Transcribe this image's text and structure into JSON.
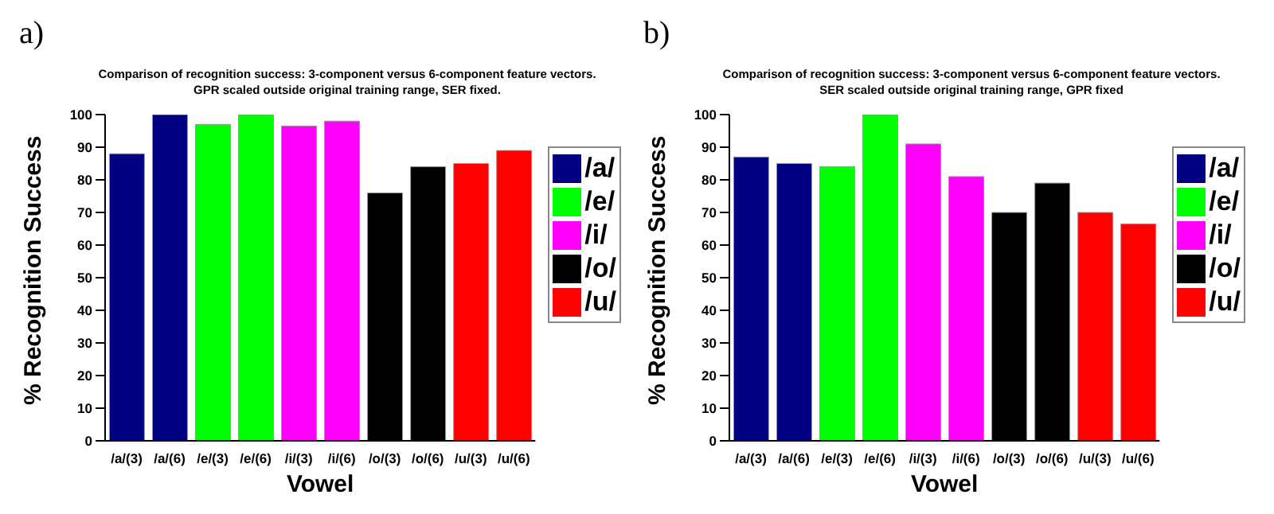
{
  "chart_data": [
    {
      "type": "bar",
      "title": "Comparison of recognition success: 3-component versus 6-component feature vectors.",
      "subtitle": "GPR scaled outside original training range, SER fixed.",
      "annotations": [
        "a)"
      ],
      "xlabel": "Vowel",
      "ylabel": "% Recognition Success",
      "categories": [
        "/a/(3)",
        "/a/(6)",
        "/e/(3)",
        "/e/(6)",
        "/i/(3)",
        "/i/(6)",
        "/o/(3)",
        "/o/(6)",
        "/u/(3)",
        "/u/(6)"
      ],
      "stacked": true,
      "legend": "right",
      "grid": false,
      "ylim": [
        0,
        100
      ],
      "yticks": [
        0,
        10,
        20,
        30,
        40,
        50,
        60,
        70,
        80,
        90,
        100
      ],
      "series": [
        {
          "name": "/a/",
          "color": "#000080",
          "values": [
            88,
            100,
            null,
            null,
            null,
            null,
            null,
            null,
            null,
            null
          ]
        },
        {
          "name": "/e/",
          "color": "#00ff00",
          "values": [
            null,
            null,
            97,
            100,
            null,
            null,
            null,
            null,
            null,
            null
          ]
        },
        {
          "name": "/i/",
          "color": "#ff00ff",
          "values": [
            null,
            null,
            null,
            null,
            96.5,
            98,
            null,
            null,
            null,
            null
          ]
        },
        {
          "name": "/o/",
          "color": "#000000",
          "values": [
            null,
            null,
            null,
            null,
            null,
            null,
            76,
            84,
            null,
            null
          ]
        },
        {
          "name": "/u/",
          "color": "#ff0000",
          "values": [
            null,
            null,
            null,
            null,
            null,
            null,
            null,
            null,
            85,
            89
          ]
        }
      ]
    },
    {
      "type": "bar",
      "title": "Comparison of recognition success: 3-component versus 6-component feature vectors.",
      "subtitle": "SER scaled outside original training range, GPR fixed",
      "annotations": [
        "b)"
      ],
      "xlabel": "Vowel",
      "ylabel": "% Recognition Success",
      "categories": [
        "/a/(3)",
        "/a/(6)",
        "/e/(3)",
        "/e/(6)",
        "/i/(3)",
        "/i/(6)",
        "/o/(3)",
        "/o/(6)",
        "/u/(3)",
        "/u/(6)"
      ],
      "stacked": true,
      "legend": "right",
      "grid": false,
      "ylim": [
        0,
        100
      ],
      "yticks": [
        0,
        10,
        20,
        30,
        40,
        50,
        60,
        70,
        80,
        90,
        100
      ],
      "series": [
        {
          "name": "/a/",
          "color": "#000080",
          "values": [
            87,
            85,
            null,
            null,
            null,
            null,
            null,
            null,
            null,
            null
          ]
        },
        {
          "name": "/e/",
          "color": "#00ff00",
          "values": [
            null,
            null,
            84,
            100,
            null,
            null,
            null,
            null,
            null,
            null
          ]
        },
        {
          "name": "/i/",
          "color": "#ff00ff",
          "values": [
            null,
            null,
            null,
            null,
            91,
            81,
            null,
            null,
            null,
            null
          ]
        },
        {
          "name": "/o/",
          "color": "#000000",
          "values": [
            null,
            null,
            null,
            null,
            null,
            null,
            70,
            79,
            null,
            null
          ]
        },
        {
          "name": "/u/",
          "color": "#ff0000",
          "values": [
            null,
            null,
            null,
            null,
            null,
            null,
            null,
            null,
            70,
            66.5
          ]
        }
      ]
    }
  ]
}
